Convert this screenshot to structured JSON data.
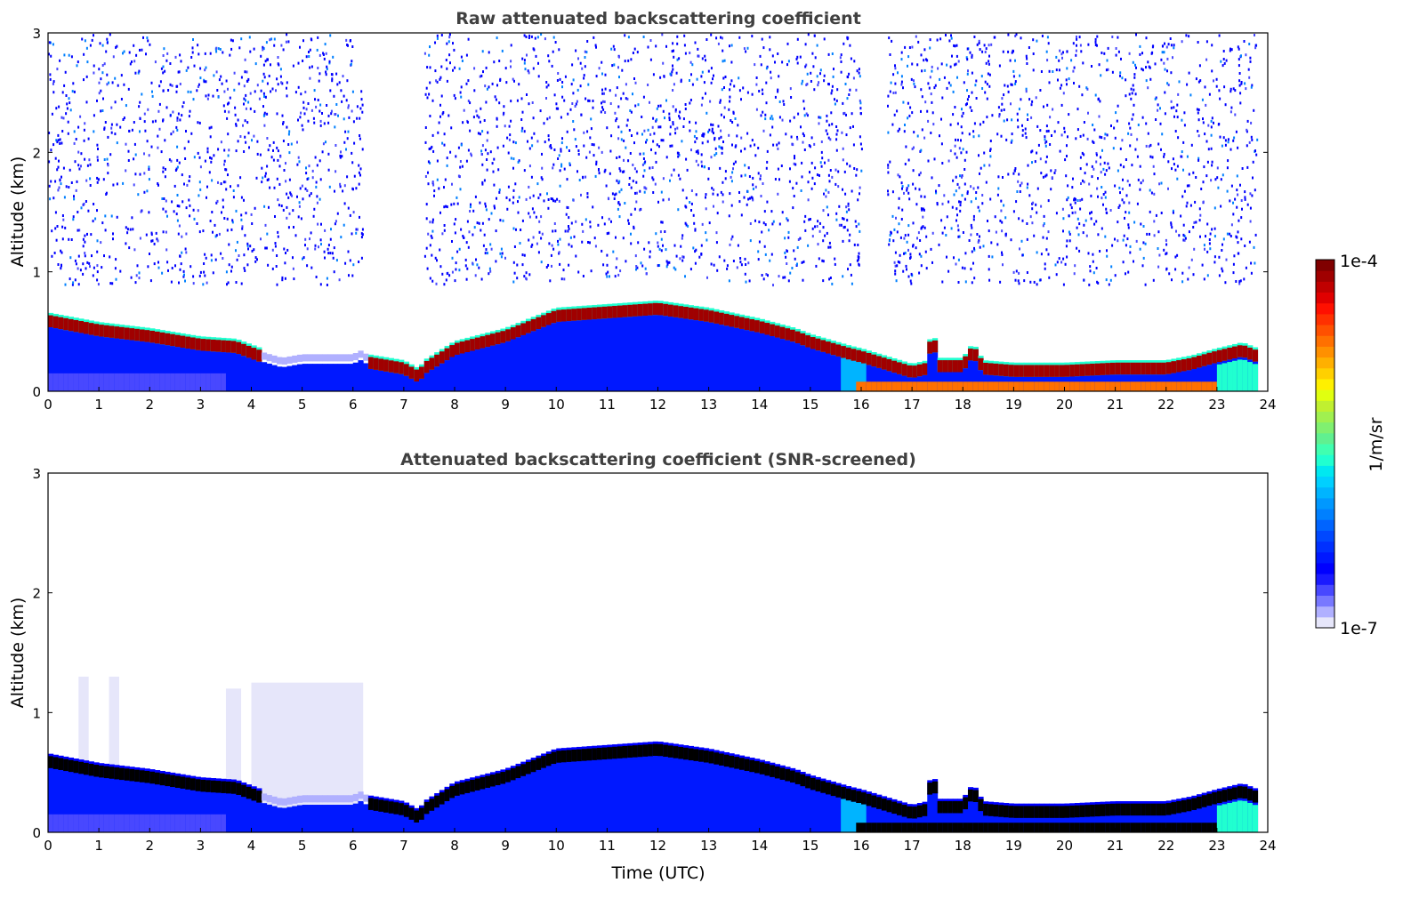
{
  "chart_data": [
    {
      "type": "heatmap",
      "title": "Raw attenuated backscattering coefficient",
      "xlabel": "",
      "ylabel": "Altitude (km)",
      "xlim": [
        0,
        24
      ],
      "ylim": [
        0,
        3
      ],
      "xticks": [
        "0",
        "1",
        "2",
        "3",
        "4",
        "5",
        "6",
        "7",
        "8",
        "9",
        "10",
        "11",
        "12",
        "13",
        "14",
        "15",
        "16",
        "17",
        "18",
        "19",
        "20",
        "21",
        "22",
        "23",
        "24"
      ],
      "yticks": [
        "0",
        "1",
        "2",
        "3"
      ],
      "aerosol_layer_top_km": {
        "time_utc": [
          0,
          1,
          2,
          3,
          3.7,
          4.2,
          4.6,
          5,
          6,
          6.2,
          6.3,
          7,
          7.3,
          7.4,
          8,
          9,
          10,
          11,
          12,
          13,
          14,
          14.7,
          15,
          15.8,
          16,
          17,
          17.3,
          17.4,
          17.5,
          18,
          18.2,
          18.4,
          19,
          20,
          21,
          22,
          22.5,
          23,
          23.5,
          23.8
        ],
        "altitude_km": [
          0.6,
          0.52,
          0.47,
          0.4,
          0.38,
          0.3,
          0.25,
          0.28,
          0.28,
          0.32,
          0.25,
          0.2,
          0.13,
          0.2,
          0.36,
          0.47,
          0.64,
          0.67,
          0.7,
          0.64,
          0.55,
          0.47,
          0.42,
          0.32,
          0.3,
          0.17,
          0.2,
          0.55,
          0.22,
          0.22,
          0.35,
          0.2,
          0.18,
          0.18,
          0.2,
          0.2,
          0.24,
          0.3,
          0.35,
          0.3
        ]
      },
      "noise_regions": [
        [
          0,
          6.2
        ],
        [
          7.4,
          16
        ],
        [
          16.5,
          23.8
        ]
      ]
    },
    {
      "type": "heatmap",
      "title": "Attenuated backscattering coefficient (SNR-screened)",
      "xlabel": "Time (UTC)",
      "ylabel": "Altitude (km)",
      "xlim": [
        0,
        24
      ],
      "ylim": [
        0,
        3
      ],
      "xticks": [
        "0",
        "1",
        "2",
        "3",
        "4",
        "5",
        "6",
        "7",
        "8",
        "9",
        "10",
        "11",
        "12",
        "13",
        "14",
        "15",
        "16",
        "17",
        "18",
        "19",
        "20",
        "21",
        "22",
        "23",
        "24"
      ],
      "yticks": [
        "0",
        "1",
        "2",
        "3"
      ],
      "faint_layer_regions": [
        [
          0.6,
          0.8,
          1.3
        ],
        [
          1.2,
          1.4,
          1.3
        ],
        [
          3.5,
          3.8,
          1.2
        ],
        [
          4,
          6.2,
          1.25
        ]
      ]
    }
  ],
  "colorbar": {
    "label": "1/m/sr",
    "max_label": "1e-4",
    "min_label": "1e-7",
    "range": [
      1e-07,
      0.0001
    ],
    "colors": [
      "#e6e6fa",
      "#b0b0ff",
      "#7878ff",
      "#4848ff",
      "#1a1aff",
      "#0000ff",
      "#0018ff",
      "#0030ff",
      "#0048ff",
      "#0064ff",
      "#0080ff",
      "#0098ff",
      "#00b4ff",
      "#00d0ff",
      "#00e8f0",
      "#20ffd0",
      "#40ffb0",
      "#60f090",
      "#80f070",
      "#a0f050",
      "#c0f030",
      "#e0ff10",
      "#fff000",
      "#ffd000",
      "#ffb000",
      "#ff9000",
      "#ff7000",
      "#ff5000",
      "#ff3000",
      "#ff1000",
      "#e00000",
      "#c00000",
      "#a00000",
      "#800000"
    ]
  }
}
